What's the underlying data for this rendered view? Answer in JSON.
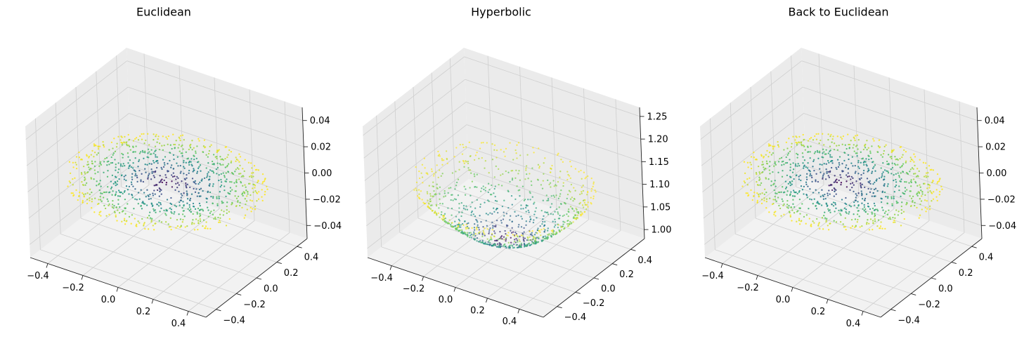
{
  "chart_data": [
    {
      "type": "scatter",
      "title": "Euclidean",
      "xlim": [
        -0.5,
        0.5
      ],
      "ylim": [
        -0.5,
        0.5
      ],
      "zlim": [
        -0.05,
        0.05
      ],
      "xticks": [
        "−0.4",
        "−0.2",
        "0.0",
        "0.2",
        "0.4"
      ],
      "yticks": [
        "−0.4",
        "−0.2",
        "0.0",
        "0.2",
        "0.4"
      ],
      "zticks": [
        "−0.04",
        "−0.02",
        "0.00",
        "0.02",
        "0.04"
      ],
      "surface": "plane",
      "z_value": 0,
      "point_count": 1000,
      "disk_radius": 0.5,
      "colormap": "viridis"
    },
    {
      "type": "scatter",
      "title": "Hyperbolic",
      "xlim": [
        -0.55,
        0.55
      ],
      "ylim": [
        -0.55,
        0.55
      ],
      "zlim": [
        0.98,
        1.27
      ],
      "xticks": [
        "−0.4",
        "−0.2",
        "0.0",
        "0.2",
        "0.4"
      ],
      "yticks": [
        "−0.4",
        "−0.2",
        "0.0",
        "0.2",
        "0.4"
      ],
      "zticks": [
        "1.00",
        "1.05",
        "1.10",
        "1.15",
        "1.20",
        "1.25"
      ],
      "surface": "hyperboloid",
      "z_value": "sqrt(1 + x^2 + y^2)",
      "point_count": 1000,
      "disk_radius": 0.5,
      "colormap": "viridis"
    },
    {
      "type": "scatter",
      "title": "Back to Euclidean",
      "xlim": [
        -0.5,
        0.5
      ],
      "ylim": [
        -0.5,
        0.5
      ],
      "zlim": [
        -0.05,
        0.05
      ],
      "xticks": [
        "−0.4",
        "−0.2",
        "0.0",
        "0.2",
        "0.4"
      ],
      "yticks": [
        "−0.4",
        "−0.2",
        "0.0",
        "0.2",
        "0.4"
      ],
      "zticks": [
        "−0.04",
        "−0.02",
        "0.00",
        "0.02",
        "0.04"
      ],
      "surface": "plane",
      "z_value": 0,
      "point_count": 1000,
      "disk_radius": 0.5,
      "colormap": "viridis"
    }
  ],
  "colors": {
    "pane_floor": "#f2f2f2",
    "pane_wall": "#ebebeb",
    "grid": "#cfcfcf",
    "axis": "#000000",
    "viridis": [
      "#440154",
      "#3b528b",
      "#21918c",
      "#5ec962",
      "#fde725"
    ]
  }
}
